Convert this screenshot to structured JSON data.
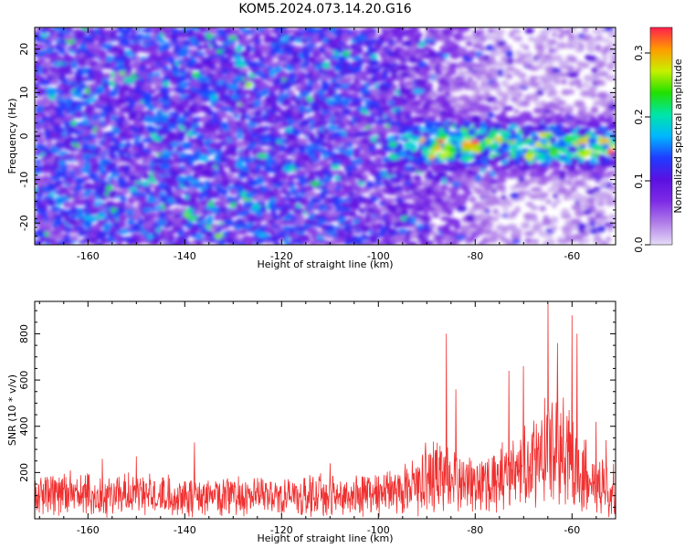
{
  "title": "KOM5.2024.073.14.20.G16",
  "colors": {
    "snr_line": "#f03030",
    "colormap": [
      "#e6dcf8",
      "#b07ee8",
      "#7d2be6",
      "#5a10e0",
      "#1f3cff",
      "#00b8ff",
      "#00e5a8",
      "#22e000",
      "#c8f000",
      "#ff9a00",
      "#ff1e4e"
    ]
  },
  "chart_data": [
    {
      "type": "heatmap",
      "xlabel": "Height of straight line (km)",
      "ylabel": "Frequency (Hz)",
      "xlim": [
        -171,
        -51
      ],
      "ylim": [
        -25,
        25
      ],
      "x_ticks": [
        -160,
        -140,
        -120,
        -100,
        -80,
        -60
      ],
      "y_ticks": [
        -20,
        -10,
        0,
        10,
        20
      ],
      "colorbar": {
        "label": "Normalized spectral amplitude",
        "range": [
          0,
          0.34
        ],
        "ticks": [
          "0.0",
          "0.1",
          "0.2",
          "0.3"
        ],
        "tick_values": [
          0.0,
          0.1,
          0.2,
          0.3
        ]
      },
      "signal_band": {
        "x_start": -100,
        "x_end": -51,
        "center_freq": -2,
        "half_width": 6,
        "peak_amplitude": 0.34,
        "peak_heights": [
          -80,
          -58
        ]
      },
      "noise_level": 0.1
    },
    {
      "type": "line",
      "xlabel": "Height of straight line (km)",
      "ylabel": "SNR (10 * v/v)",
      "xlim": [
        -171,
        -51
      ],
      "ylim": [
        0,
        940
      ],
      "x_ticks": [
        -160,
        -140,
        -120,
        -100,
        -80,
        -60
      ],
      "y_ticks": [
        200,
        400,
        600,
        800
      ],
      "series": [
        {
          "color": "#f03030",
          "envelope": [
            [
              -171,
              140
            ],
            [
              -160,
              140
            ],
            [
              -140,
              135
            ],
            [
              -120,
              130
            ],
            [
              -105,
              135
            ],
            [
              -98,
              150
            ],
            [
              -92,
              200
            ],
            [
              -87,
              270
            ],
            [
              -84,
              230
            ],
            [
              -80,
              180
            ],
            [
              -75,
              220
            ],
            [
              -70,
              300
            ],
            [
              -66,
              350
            ],
            [
              -64,
              380
            ],
            [
              -61,
              360
            ],
            [
              -58,
              280
            ],
            [
              -55,
              190
            ],
            [
              -51,
              170
            ]
          ],
          "peaks": [
            [
              -157,
              260
            ],
            [
              -150,
              270
            ],
            [
              -138,
              330
            ],
            [
              -110,
              240
            ],
            [
              -86,
              800
            ],
            [
              -84,
              560
            ],
            [
              -73,
              640
            ],
            [
              -70,
              660
            ],
            [
              -65,
              930
            ],
            [
              -63,
              760
            ],
            [
              -60,
              880
            ],
            [
              -59,
              800
            ],
            [
              -55,
              420
            ],
            [
              -53,
              340
            ]
          ]
        }
      ]
    }
  ]
}
